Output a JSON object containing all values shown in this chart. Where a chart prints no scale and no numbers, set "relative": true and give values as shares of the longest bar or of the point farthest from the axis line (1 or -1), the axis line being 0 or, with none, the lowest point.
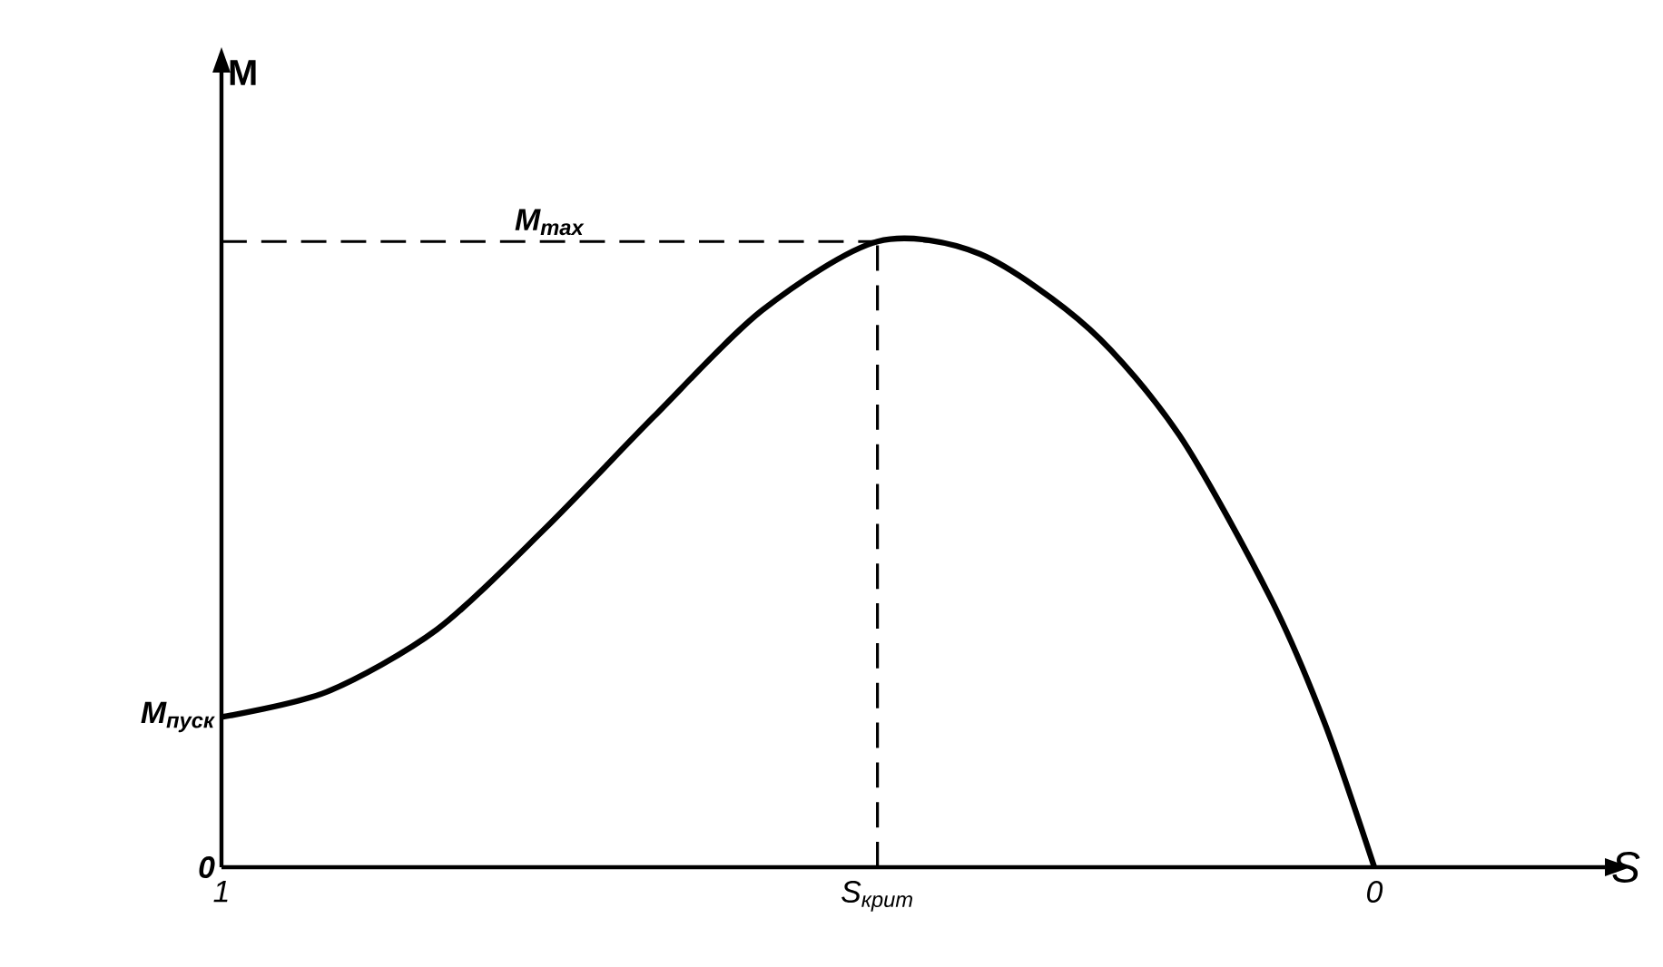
{
  "chart_data": {
    "type": "line",
    "relative": true,
    "xlabel": "S",
    "ylabel": "M",
    "x": [
      1,
      0.909,
      0.813,
      0.72,
      0.625,
      0.531,
      0.431,
      0.342,
      0.247,
      0.169,
      0.09,
      0.043,
      0
    ],
    "series": [
      {
        "color": "#000000",
        "values": [
          0.24,
          0.28,
          0.38,
          0.54,
          0.72,
          0.89,
          1.0,
          0.98,
          0.86,
          0.69,
          0.43,
          0.23,
          0
        ]
      }
    ],
    "xlim": [
      1,
      -0.2
    ],
    "xticks": [
      1,
      {
        "value": 0.431,
        "label": "S$_{крит}$"
      },
      0
    ],
    "ref_lines": [
      {
        "axis": "y",
        "value": 1.0,
        "label": "M$_{max}$",
        "line_style": "dashed"
      },
      {
        "axis": "x",
        "value": 0.431,
        "line_style": "dashed"
      }
    ],
    "annotations": [
      {
        "text": "M$_{пуск}$",
        "x": 1,
        "y": 0.24
      },
      "0"
    ],
    "grid": false,
    "marker": "none"
  }
}
